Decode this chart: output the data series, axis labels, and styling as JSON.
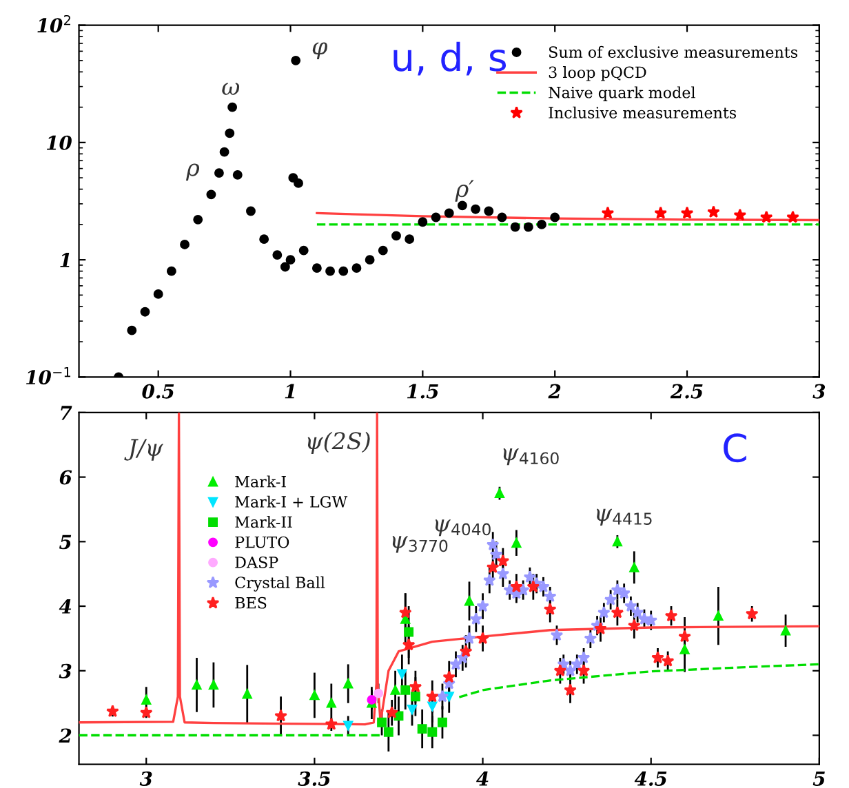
{
  "chart_data": [
    {
      "type": "scatter",
      "log": true,
      "xlim": [
        0.2,
        3
      ],
      "ylim": [
        0.1,
        100
      ],
      "xticks": [
        0.5,
        1,
        1.5,
        2,
        2.5,
        3
      ],
      "yticks": [
        {
          "value": 0.1,
          "label": "10$^{−1}$"
        },
        1,
        10,
        {
          "value": 100,
          "label": "10$^{2}$"
        }
      ],
      "grid": false,
      "legend": "top right",
      "annotations": [
        "u, d, s",
        "ρ",
        "ω",
        "φ",
        "ρ′"
      ],
      "series": [
        {
          "name": "Sum of exclusive measurements",
          "color": "#000000",
          "marker": "circle",
          "x": [
            0.35,
            0.4,
            0.45,
            0.5,
            0.55,
            0.6,
            0.65,
            0.7,
            0.73,
            0.75,
            0.77,
            0.78,
            0.8,
            0.85,
            0.9,
            0.95,
            0.98,
            1.0,
            1.01,
            1.02,
            1.03,
            1.05,
            1.1,
            1.15,
            1.2,
            1.25,
            1.3,
            1.35,
            1.4,
            1.45,
            1.5,
            1.55,
            1.6,
            1.65,
            1.7,
            1.75,
            1.8,
            1.85,
            1.9,
            1.95,
            2.0
          ],
          "values": [
            0.1,
            0.25,
            0.36,
            0.51,
            0.8,
            1.35,
            2.2,
            3.6,
            5.5,
            8.3,
            12,
            20,
            5.3,
            2.6,
            1.5,
            1.1,
            0.87,
            1.0,
            5,
            50,
            4.5,
            1.2,
            0.85,
            0.8,
            0.8,
            0.85,
            1.0,
            1.2,
            1.6,
            1.5,
            2.1,
            2.3,
            2.5,
            2.9,
            2.7,
            2.6,
            2.3,
            1.9,
            1.9,
            2.0,
            2.3
          ]
        },
        {
          "name": "3 loop pQCD",
          "type": "line",
          "color": "#ff4040",
          "line_style": "solid",
          "x": [
            1.1,
            1.5,
            2,
            2.5,
            3
          ],
          "values": [
            2.5,
            2.35,
            2.25,
            2.2,
            2.18
          ]
        },
        {
          "name": "Naive quark model",
          "type": "line",
          "color": "#00dd00",
          "line_style": "dashed",
          "x": [
            1.1,
            3
          ],
          "values": [
            2,
            2
          ]
        },
        {
          "name": "Inclusive measurements",
          "color": "#ff0000",
          "marker": "star",
          "x": [
            2.2,
            2.4,
            2.5,
            2.6,
            2.7,
            2.8,
            2.9
          ],
          "values": [
            2.5,
            2.5,
            2.5,
            2.55,
            2.4,
            2.3,
            2.3
          ]
        }
      ]
    },
    {
      "type": "scatter",
      "xlim": [
        2.8,
        5
      ],
      "ylim": [
        1.55,
        7
      ],
      "xticks": [
        3,
        3.5,
        4,
        4.5,
        5
      ],
      "yticks": [
        2,
        3,
        4,
        5,
        6,
        7
      ],
      "grid": false,
      "legend": "top left",
      "annotations": [
        "C",
        "J/ψ",
        "ψ(2S)",
        "ψ$_{3770}$",
        "ψ$_{4040}$",
        "ψ$_{4160}$",
        "ψ$_{4415}$"
      ],
      "series": [
        {
          "type": "line",
          "color": "#ff4040",
          "line_style": "solid",
          "x": [
            2.8,
            3.08,
            3.094,
            3.097,
            3.1,
            3.114,
            3.2,
            3.4,
            3.65,
            3.676,
            3.684,
            3.686,
            3.688,
            3.696,
            3.72,
            3.75,
            3.85,
            4.0,
            4.2,
            4.5,
            5.0
          ],
          "values": [
            2.2,
            2.21,
            2.6,
            7,
            2.6,
            2.2,
            2.19,
            2.18,
            2.17,
            2.2,
            2.8,
            7,
            2.8,
            2.2,
            3.0,
            3.3,
            3.45,
            3.53,
            3.63,
            3.67,
            3.69
          ]
        },
        {
          "type": "line",
          "color": "#00dd00",
          "line_style": "dashed",
          "x": [
            2.8,
            3.7,
            3.8,
            3.93,
            4.0,
            4.2,
            4.5,
            4.8,
            5.0
          ],
          "values": [
            2.0,
            2.0,
            null,
            2.59,
            2.7,
            2.85,
            2.99,
            3.06,
            3.1
          ]
        },
        {
          "name": "Mark-I",
          "color": "#00ee00",
          "marker": "triangle",
          "x": [
            3.0,
            3.15,
            3.2,
            3.3,
            3.5,
            3.55,
            3.6,
            3.67,
            3.74,
            3.77,
            3.96,
            4.05,
            4.1,
            4.4,
            4.45,
            4.6,
            4.7,
            4.9
          ],
          "values": [
            2.55,
            2.78,
            2.78,
            2.64,
            2.62,
            2.5,
            2.8,
            2.5,
            2.7,
            3.8,
            4.08,
            5.75,
            4.98,
            5.0,
            4.6,
            3.33,
            3.85,
            3.62
          ],
          "errors": [
            0.2,
            0.42,
            0.35,
            0.45,
            0.35,
            0.3,
            0.3,
            0.25,
            0.3,
            0.4,
            0.3,
            0.1,
            0.2,
            0.1,
            0.25,
            0.35,
            0.45,
            0.25
          ]
        },
        {
          "name": "Mark-I + LGW",
          "color": "#00e5ff",
          "marker": "triangle_down",
          "x": [
            3.6,
            3.76,
            3.79,
            3.85,
            3.9
          ],
          "values": [
            2.15,
            2.95,
            2.4,
            2.45,
            2.6
          ],
          "errors": [
            0.15,
            0.3,
            0.25,
            0.25,
            0.25
          ]
        },
        {
          "name": "Mark-II",
          "color": "#00dd00",
          "marker": "square",
          "x": [
            3.7,
            3.72,
            3.75,
            3.77,
            3.78,
            3.8,
            3.82,
            3.85,
            3.88
          ],
          "values": [
            2.2,
            2.05,
            2.3,
            2.7,
            3.6,
            2.6,
            2.1,
            2.05,
            2.2
          ],
          "errors": [
            0.2,
            0.3,
            0.3,
            0.3,
            0.4,
            0.3,
            0.3,
            0.25,
            0.25
          ]
        },
        {
          "name": "PLUTO",
          "color": "#ff00ff",
          "marker": "circle",
          "x": [
            3.67
          ],
          "values": [
            2.55
          ],
          "errors": [
            0.15
          ]
        },
        {
          "name": "DASP",
          "color": "#ffaaff",
          "marker": "circle",
          "x": [
            3.69
          ],
          "values": [
            2.65
          ],
          "errors": [
            0.15
          ]
        },
        {
          "name": "Crystal Ball",
          "color": "#9999ff",
          "marker": "star",
          "x": [
            3.88,
            3.9,
            3.92,
            3.94,
            3.96,
            3.98,
            4.0,
            4.02,
            4.03,
            4.04,
            4.06,
            4.08,
            4.1,
            4.12,
            4.14,
            4.16,
            4.18,
            4.2,
            4.22,
            4.24,
            4.26,
            4.28,
            4.3,
            4.32,
            4.34,
            4.36,
            4.38,
            4.4,
            4.42,
            4.44,
            4.46,
            4.48,
            4.5
          ],
          "values": [
            2.6,
            2.8,
            3.1,
            3.2,
            3.5,
            3.8,
            4.0,
            4.4,
            4.95,
            4.8,
            4.5,
            4.25,
            4.2,
            4.25,
            4.45,
            4.35,
            4.3,
            4.15,
            3.55,
            3.1,
            3.0,
            3.1,
            3.2,
            3.5,
            3.7,
            3.9,
            4.1,
            4.25,
            4.2,
            4.0,
            3.9,
            3.8,
            3.78
          ],
          "errors": [
            0.2,
            0.2,
            0.2,
            0.2,
            0.2,
            0.2,
            0.2,
            0.2,
            0.2,
            0.2,
            0.2,
            0.15,
            0.15,
            0.15,
            0.15,
            0.15,
            0.15,
            0.15,
            0.15,
            0.15,
            0.15,
            0.15,
            0.15,
            0.15,
            0.15,
            0.15,
            0.15,
            0.15,
            0.15,
            0.15,
            0.15,
            0.15,
            0.15
          ]
        },
        {
          "name": "BES",
          "color": "#ff2020",
          "marker": "star",
          "x": [
            2.9,
            3.0,
            3.4,
            3.55,
            3.73,
            3.77,
            3.78,
            3.8,
            3.85,
            3.9,
            3.95,
            4.0,
            4.03,
            4.06,
            4.1,
            4.15,
            4.2,
            4.23,
            4.26,
            4.3,
            4.35,
            4.4,
            4.45,
            4.52,
            4.55,
            4.56,
            4.6,
            4.8
          ],
          "values": [
            2.37,
            2.35,
            2.3,
            2.17,
            2.35,
            3.9,
            3.4,
            2.75,
            2.6,
            2.9,
            3.3,
            3.5,
            4.6,
            4.7,
            4.3,
            4.3,
            3.95,
            3.0,
            2.7,
            3.0,
            3.65,
            3.9,
            3.7,
            3.2,
            3.15,
            3.85,
            3.53,
            3.88
          ],
          "errors": [
            0.08,
            0.08,
            0.3,
            0.1,
            0.2,
            0.3,
            0.3,
            0.25,
            0.25,
            0.25,
            0.25,
            0.2,
            0.2,
            0.2,
            0.2,
            0.2,
            0.2,
            0.2,
            0.2,
            0.2,
            0.2,
            0.2,
            0.2,
            0.15,
            0.15,
            0.15,
            0.3,
            0.12
          ]
        }
      ]
    }
  ]
}
